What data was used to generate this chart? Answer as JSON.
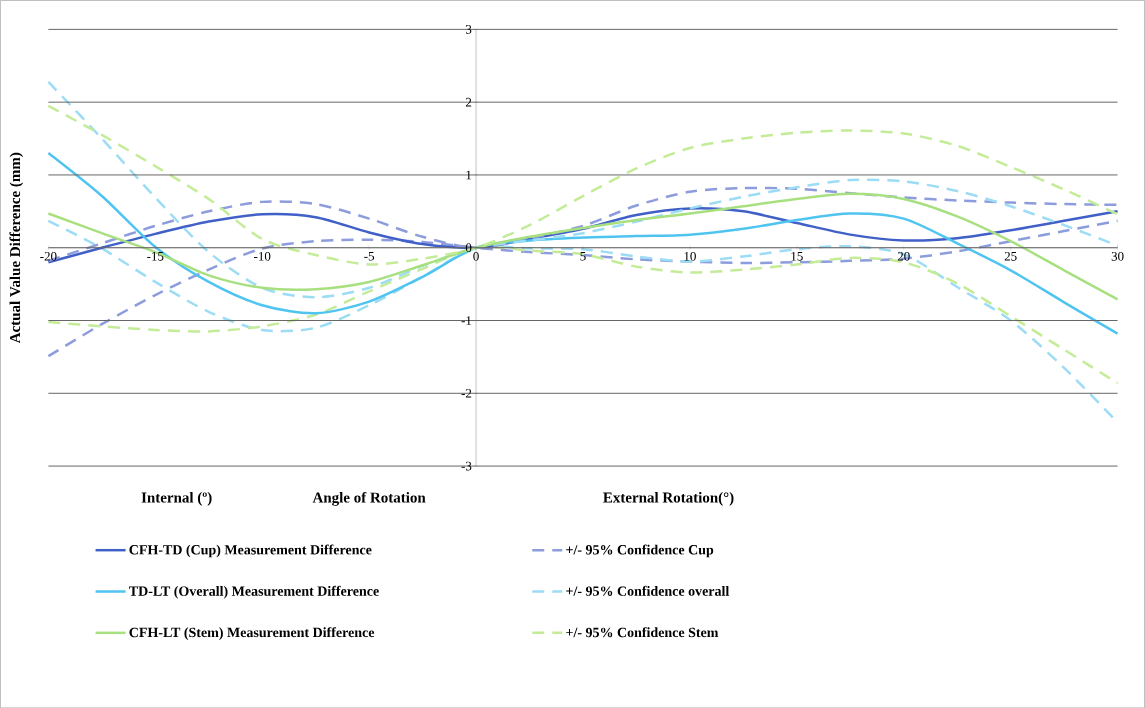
{
  "chart_data": {
    "type": "line",
    "xlabel": "Angle of Rotation",
    "ylabel": "Actual  Value Difference  (mm)",
    "annotations": [
      "Internal (º)",
      "External  Rotation(°)"
    ],
    "x": [
      -20,
      -17.5,
      -15,
      -12.5,
      -10,
      -7.5,
      -5,
      -2.5,
      0,
      2.5,
      5,
      7.5,
      10,
      12.5,
      15,
      17.5,
      20,
      22.5,
      25,
      27.5,
      30
    ],
    "series": [
      {
        "name": "CFH-TD (Cup) Measurement Difference",
        "color": "#4060c8",
        "line_style": "solid",
        "values": [
          -0.2,
          0.0,
          0.19,
          0.36,
          0.46,
          0.42,
          0.21,
          0.05,
          0,
          0.12,
          0.26,
          0.45,
          0.54,
          0.5,
          0.34,
          0.18,
          0.1,
          0.13,
          0.24,
          0.37,
          0.5
        ]
      },
      {
        "name": "TD-LT (Overall)  Measurement Difference",
        "color": "#50c4f0",
        "line_style": "solid",
        "values": [
          1.3,
          0.71,
          0.01,
          -0.47,
          -0.79,
          -0.9,
          -0.74,
          -0.4,
          0,
          0.1,
          0.14,
          0.16,
          0.18,
          0.26,
          0.38,
          0.47,
          0.4,
          0.06,
          -0.31,
          -0.75,
          -1.18
        ]
      },
      {
        "name": "CFH-LT (Stem) Measurement Difference",
        "color": "#a8e080",
        "line_style": "solid",
        "values": [
          0.47,
          0.2,
          -0.06,
          -0.38,
          -0.55,
          -0.57,
          -0.47,
          -0.24,
          0,
          0.15,
          0.27,
          0.38,
          0.47,
          0.57,
          0.67,
          0.74,
          0.67,
          0.43,
          0.09,
          -0.31,
          -0.71
        ]
      },
      {
        "name": "+/- 95% Confidence Cup",
        "color": "#8c9cdc",
        "line_style": "dashed",
        "values": [
          -0.18,
          0.06,
          0.3,
          0.5,
          0.63,
          0.6,
          0.4,
          0.15,
          0,
          0.13,
          0.3,
          0.58,
          0.77,
          0.82,
          0.81,
          0.75,
          0.69,
          0.65,
          0.62,
          0.6,
          0.59
        ]
      },
      {
        "color": "#8c9cdc",
        "line_style": "dashed",
        "values": [
          -1.49,
          -1.05,
          -0.65,
          -0.3,
          -0.01,
          0.09,
          0.11,
          0.08,
          0,
          -0.06,
          -0.1,
          -0.16,
          -0.19,
          -0.21,
          -0.2,
          -0.18,
          -0.15,
          -0.05,
          0.09,
          0.23,
          0.37
        ]
      },
      {
        "name": "+/- 95% Confidence overall",
        "color": "#9cdcf4",
        "line_style": "dashed",
        "values": [
          2.28,
          1.5,
          0.69,
          -0.06,
          -0.55,
          -0.68,
          -0.55,
          -0.25,
          0,
          0.1,
          0.2,
          0.36,
          0.54,
          0.7,
          0.83,
          0.93,
          0.91,
          0.78,
          0.57,
          0.31,
          0.03
        ]
      },
      {
        "color": "#9cdcf4",
        "line_style": "dashed",
        "values": [
          0.37,
          -0.01,
          -0.47,
          -0.88,
          -1.13,
          -1.1,
          -0.79,
          -0.4,
          0,
          -0.01,
          -0.02,
          -0.12,
          -0.19,
          -0.12,
          -0.02,
          0.02,
          -0.09,
          -0.54,
          -1.0,
          -1.65,
          -2.4
        ]
      },
      {
        "name": "+/- 95% Confidence Stem",
        "color": "#c4ec98",
        "line_style": "dashed",
        "values": [
          1.95,
          1.55,
          1.12,
          0.67,
          0.12,
          -0.1,
          -0.23,
          -0.15,
          0,
          0.31,
          0.71,
          1.09,
          1.37,
          1.5,
          1.58,
          1.61,
          1.57,
          1.4,
          1.11,
          0.8,
          0.46
        ]
      },
      {
        "color": "#c4ec98",
        "line_style": "dashed",
        "values": [
          -1.02,
          -1.08,
          -1.13,
          -1.15,
          -1.08,
          -0.92,
          -0.6,
          -0.29,
          0,
          -0.04,
          -0.09,
          -0.26,
          -0.34,
          -0.3,
          -0.23,
          -0.14,
          -0.2,
          -0.49,
          -0.94,
          -1.4,
          -1.86
        ]
      }
    ],
    "xlim": [
      -20,
      30
    ],
    "ylim": [
      -3,
      3
    ],
    "xticks": [
      -20,
      -15,
      -10,
      -5,
      0,
      5,
      10,
      15,
      20,
      25,
      30
    ],
    "yticks": [
      -3,
      -2,
      -1,
      0,
      1,
      2,
      3
    ],
    "grid": "y",
    "legend": "bottom",
    "marker": "none"
  }
}
